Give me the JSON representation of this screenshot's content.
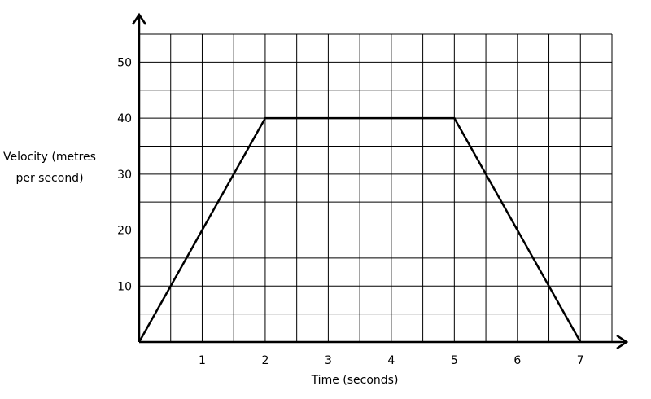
{
  "chart_data": {
    "type": "line",
    "xlabel": "Time (seconds)",
    "ylabel_lines": [
      "Velocity (metres",
      "per second)"
    ],
    "x": [
      0,
      2,
      5,
      7
    ],
    "y": [
      0,
      40,
      40,
      0
    ],
    "xlim": [
      0,
      7.5
    ],
    "ylim": [
      0,
      55
    ],
    "x_ticks": [
      1,
      2,
      3,
      4,
      5,
      6,
      7
    ],
    "y_ticks": [
      10,
      20,
      30,
      40,
      50
    ],
    "x_tick_labels": [
      "1",
      "2",
      "3",
      "4",
      "5",
      "6",
      "7"
    ],
    "y_tick_labels": [
      "10",
      "20",
      "30",
      "40",
      "50"
    ],
    "x_minor_step": 0.5,
    "y_minor_step": 5,
    "grid": true,
    "line_color": "#000000",
    "grid_color": "#000000"
  }
}
